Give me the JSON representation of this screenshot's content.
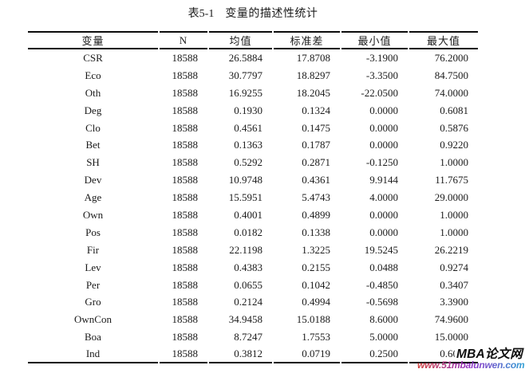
{
  "title": {
    "label": "表5-1",
    "text": "变量的描述性统计"
  },
  "table": {
    "columns": [
      "变量",
      "N",
      "均值",
      "标准差",
      "最小值",
      "最大值"
    ],
    "rows": [
      [
        "CSR",
        "18588",
        "26.5884",
        "17.8708",
        "-3.1900",
        "76.2000"
      ],
      [
        "Eco",
        "18588",
        "30.7797",
        "18.8297",
        "-3.3500",
        "84.7500"
      ],
      [
        "Oth",
        "18588",
        "16.9255",
        "18.2045",
        "-22.0500",
        "74.0000"
      ],
      [
        "Deg",
        "18588",
        "0.1930",
        "0.1324",
        "0.0000",
        "0.6081"
      ],
      [
        "Clo",
        "18588",
        "0.4561",
        "0.1475",
        "0.0000",
        "0.5876"
      ],
      [
        "Bet",
        "18588",
        "0.1363",
        "0.1787",
        "0.0000",
        "0.9220"
      ],
      [
        "SH",
        "18588",
        "0.5292",
        "0.2871",
        "-0.1250",
        "1.0000"
      ],
      [
        "Dev",
        "18588",
        "10.9748",
        "0.4361",
        "9.9144",
        "11.7675"
      ],
      [
        "Age",
        "18588",
        "15.5951",
        "5.4743",
        "4.0000",
        "29.0000"
      ],
      [
        "Own",
        "18588",
        "0.4001",
        "0.4899",
        "0.0000",
        "1.0000"
      ],
      [
        "Pos",
        "18588",
        "0.0182",
        "0.1338",
        "0.0000",
        "1.0000"
      ],
      [
        "Fir",
        "18588",
        "22.1198",
        "1.3225",
        "19.5245",
        "26.2219"
      ],
      [
        "Lev",
        "18588",
        "0.4383",
        "0.2155",
        "0.0488",
        "0.9274"
      ],
      [
        "Per",
        "18588",
        "0.0655",
        "0.1042",
        "-0.4850",
        "0.3407"
      ],
      [
        "Gro",
        "18588",
        "0.2124",
        "0.4994",
        "-0.5698",
        "3.3900"
      ],
      [
        "OwnCon",
        "18588",
        "34.9458",
        "15.0188",
        "8.6000",
        "74.9600"
      ],
      [
        "Boa",
        "18588",
        "8.7247",
        "1.7553",
        "5.0000",
        "15.0000"
      ],
      [
        "Ind",
        "18588",
        "0.3812",
        "0.0719",
        "0.2500",
        "0.6000"
      ]
    ]
  },
  "watermark": {
    "brand": "MBA论文网",
    "url": "www.51mbalunwen.com",
    "brand_color": "#0e0e0e",
    "url_colors": [
      "#d2413c",
      "#9032c8",
      "#2f9fd4"
    ]
  }
}
